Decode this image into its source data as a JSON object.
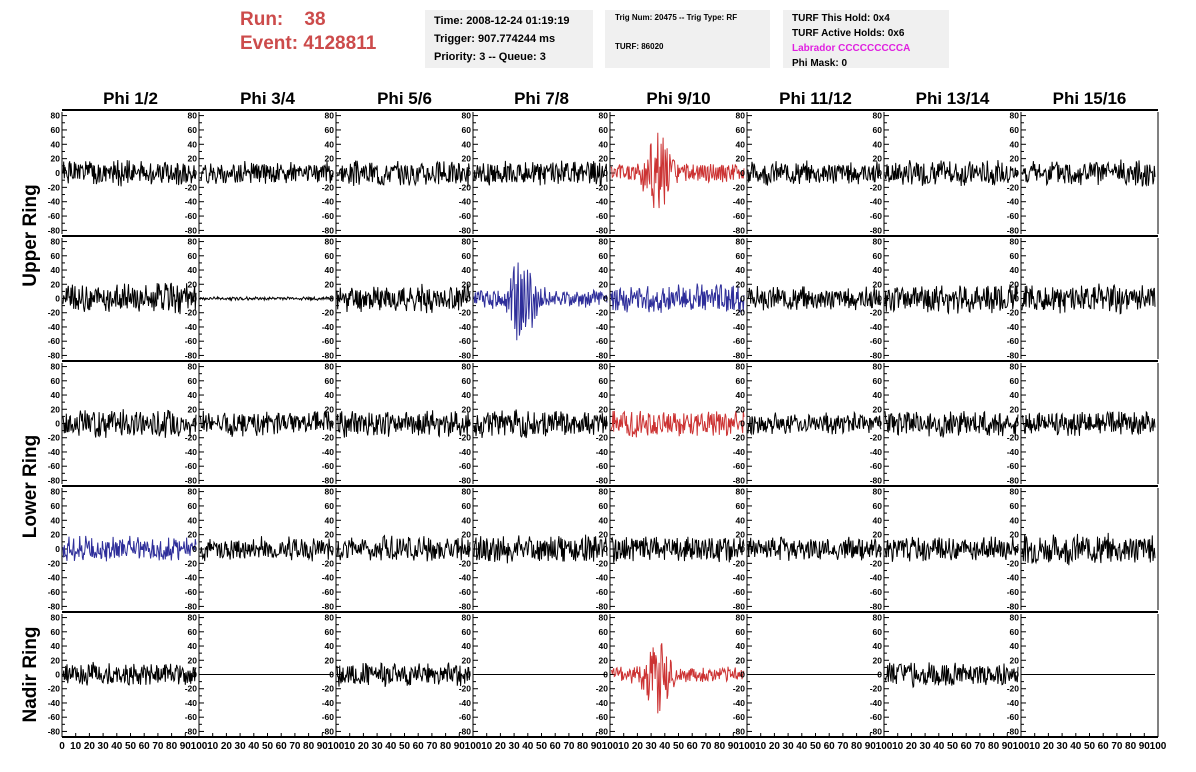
{
  "header": {
    "run_label": "Run:",
    "run_value": "38",
    "event_label": "Event:",
    "event_value": "4128811",
    "time": "Time: 2008-12-24 01:19:19",
    "trigger": "Trigger: 907.774244 ms",
    "priority": "Priority: 3 -- Queue: 3",
    "trig_num": "Trig Num: 20475 -- Trig Type: RF",
    "turf": "TURF: 86020",
    "turf_this_hold": "TURF This Hold: 0x4",
    "turf_active_holds": "TURF Active Holds: 0x6",
    "labrador": "Labrador CCCCCCCCCA",
    "phi_mask": "Phi Mask: 0"
  },
  "colors": {
    "black": "#000000",
    "red": "#cc3333",
    "blue": "#2e2e9a",
    "header_red": "#cc4b4b",
    "labrador": "#e020e0"
  },
  "chart_data": {
    "type": "line",
    "columns": [
      "Phi 1/2",
      "Phi 3/4",
      "Phi 5/6",
      "Phi 7/8",
      "Phi 9/10",
      "Phi 11/12",
      "Phi 13/14",
      "Phi 15/16"
    ],
    "row_groups": [
      {
        "label": "Upper Ring",
        "rows": [
          0,
          1
        ]
      },
      {
        "label": "Lower Ring",
        "rows": [
          2,
          3
        ]
      },
      {
        "label": "Nadir Ring",
        "rows": [
          4
        ]
      }
    ],
    "ylim": [
      -85,
      85
    ],
    "yticks": [
      -80,
      -60,
      -40,
      -20,
      0,
      20,
      40,
      60,
      80
    ],
    "xlim": [
      0,
      100
    ],
    "xticks": [
      0,
      10,
      20,
      30,
      40,
      50,
      60,
      70,
      80,
      90,
      100
    ],
    "panels": [
      [
        {
          "c": "black",
          "a": 15,
          "s": 1
        },
        {
          "c": "black",
          "a": 13,
          "s": 2
        },
        {
          "c": "black",
          "a": 15,
          "s": 3
        },
        {
          "c": "black",
          "a": 15,
          "s": 4
        },
        {
          "c": "red",
          "a": 22,
          "s": 5,
          "burst": true
        },
        {
          "c": "black",
          "a": 14,
          "s": 6
        },
        {
          "c": "black",
          "a": 15,
          "s": 7
        },
        {
          "c": "black",
          "a": 15,
          "s": 8
        }
      ],
      [
        {
          "c": "black",
          "a": 18,
          "s": 9
        },
        {
          "c": "black",
          "a": 2,
          "s": 10
        },
        {
          "c": "black",
          "a": 16,
          "s": 11
        },
        {
          "c": "blue",
          "a": 22,
          "s": 12,
          "burst": true
        },
        {
          "c": "blue",
          "a": 17,
          "s": 13
        },
        {
          "c": "black",
          "a": 14,
          "s": 14
        },
        {
          "c": "black",
          "a": 17,
          "s": 15
        },
        {
          "c": "black",
          "a": 17,
          "s": 16
        }
      ],
      [
        {
          "c": "black",
          "a": 17,
          "s": 17
        },
        {
          "c": "black",
          "a": 15,
          "s": 18
        },
        {
          "c": "black",
          "a": 16,
          "s": 19
        },
        {
          "c": "black",
          "a": 16,
          "s": 20
        },
        {
          "c": "red",
          "a": 16,
          "s": 21
        },
        {
          "c": "black",
          "a": 13,
          "s": 22
        },
        {
          "c": "black",
          "a": 16,
          "s": 23
        },
        {
          "c": "black",
          "a": 14,
          "s": 24
        }
      ],
      [
        {
          "c": "blue",
          "a": 15,
          "s": 25
        },
        {
          "c": "black",
          "a": 14,
          "s": 26
        },
        {
          "c": "black",
          "a": 15,
          "s": 27
        },
        {
          "c": "black",
          "a": 17,
          "s": 28
        },
        {
          "c": "black",
          "a": 16,
          "s": 29
        },
        {
          "c": "black",
          "a": 14,
          "s": 30
        },
        {
          "c": "black",
          "a": 15,
          "s": 31
        },
        {
          "c": "black",
          "a": 18,
          "s": 32
        }
      ],
      [
        {
          "c": "black",
          "a": 14,
          "s": 33
        },
        {
          "c": "black",
          "a": 0,
          "s": 34
        },
        {
          "c": "black",
          "a": 14,
          "s": 35
        },
        {
          "c": "black",
          "a": 0,
          "s": 36
        },
        {
          "c": "red",
          "a": 19,
          "s": 37,
          "burst": true
        },
        {
          "c": "black",
          "a": 0,
          "s": 38
        },
        {
          "c": "black",
          "a": 14,
          "s": 39
        },
        {
          "c": "black",
          "a": 0,
          "s": 40
        }
      ]
    ]
  }
}
